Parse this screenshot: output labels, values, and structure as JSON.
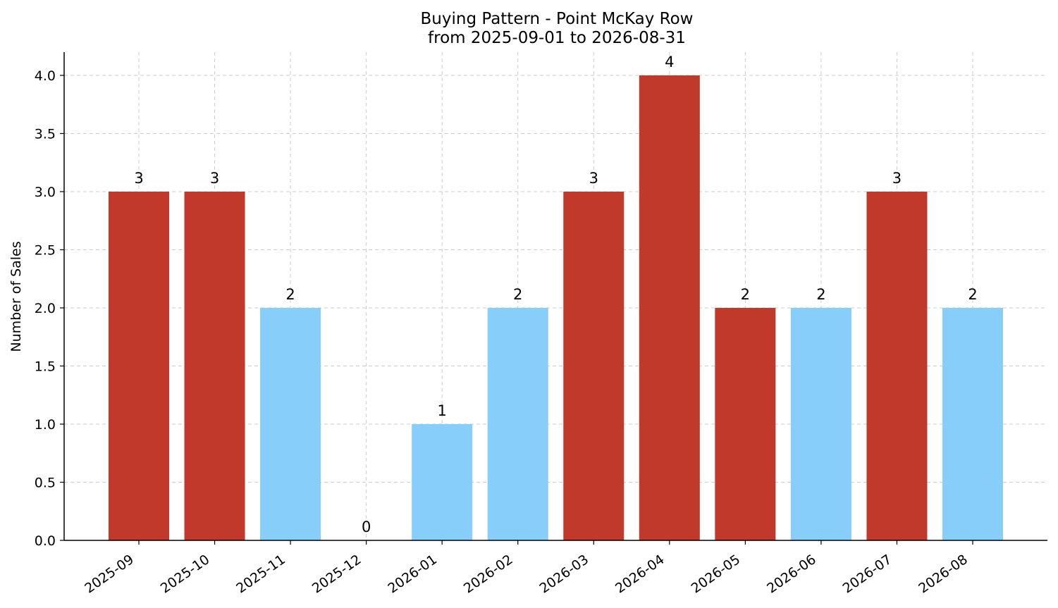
{
  "chart_data": {
    "type": "bar",
    "title": "Buying Pattern - Point McKay Row",
    "subtitle": "from 2025-09-01 to 2026-08-31",
    "xlabel": "",
    "ylabel": "Number of Sales",
    "ylim": [
      0,
      4.2
    ],
    "yticks": [
      "0.0",
      "0.5",
      "1.0",
      "1.5",
      "2.0",
      "2.5",
      "3.0",
      "3.5",
      "4.0"
    ],
    "grid": true,
    "legend": "none",
    "categories": [
      "2025-09",
      "2025-10",
      "2025-11",
      "2025-12",
      "2026-01",
      "2026-02",
      "2026-03",
      "2026-04",
      "2026-05",
      "2026-06",
      "2026-07",
      "2026-08"
    ],
    "values": [
      3,
      3,
      2,
      0,
      1,
      2,
      3,
      4,
      2,
      2,
      3,
      2
    ],
    "value_labels": [
      "3",
      "3",
      "2",
      "0",
      "1",
      "2",
      "3",
      "4",
      "2",
      "2",
      "3",
      "2"
    ],
    "colors": {
      "high": "#c0392b",
      "low": "#87cefa"
    },
    "bar_colors": [
      "high",
      "high",
      "low",
      "low",
      "low",
      "low",
      "high",
      "high",
      "high",
      "low",
      "high",
      "low"
    ]
  }
}
